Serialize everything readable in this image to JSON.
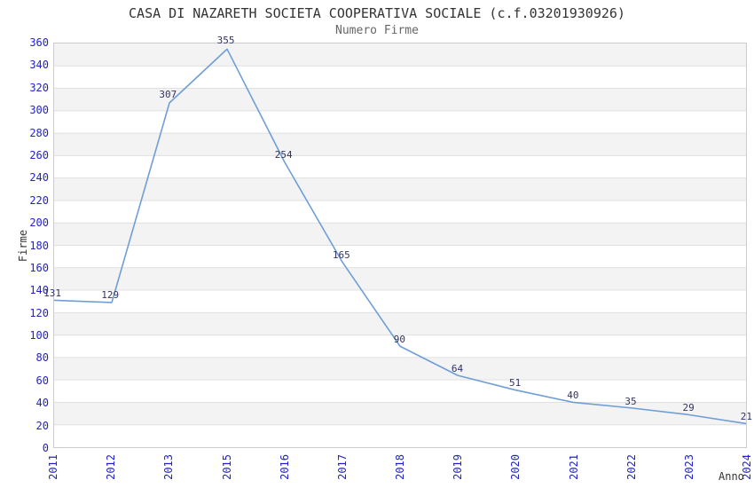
{
  "chart_data": {
    "type": "line",
    "title": "CASA DI NAZARETH SOCIETA COOPERATIVA SOCIALE (c.f.03201930926)",
    "subtitle": "Numero Firme",
    "xlabel": "Anno",
    "ylabel": "Firme",
    "categories": [
      "2011",
      "2012",
      "2013",
      "2015",
      "2016",
      "2017",
      "2018",
      "2019",
      "2020",
      "2021",
      "2022",
      "2023",
      "2024"
    ],
    "values": [
      131,
      129,
      307,
      355,
      254,
      165,
      90,
      64,
      51,
      40,
      35,
      29,
      21
    ],
    "point_labels": [
      "131",
      "129",
      "307",
      "355",
      "254",
      "165",
      "90",
      "64",
      "51",
      "40",
      "35",
      "29",
      "21"
    ],
    "yticks": [
      0,
      20,
      40,
      60,
      80,
      100,
      120,
      140,
      160,
      180,
      200,
      220,
      240,
      260,
      280,
      300,
      320,
      340,
      360
    ],
    "ylim": [
      0,
      360
    ],
    "ytick_step": 20,
    "grid": "horizontal",
    "band_fill": "alternating-horizontal",
    "legend": "none",
    "markers": "none",
    "colors": {
      "line": "#6f9ed6",
      "tick_label": "#2222cc",
      "point_label": "#333366",
      "title": "#333333",
      "subtitle": "#666666",
      "axis_label": "#333333",
      "band": "#f3f3f3",
      "gridline": "#e0e0e0",
      "plot_border": "#cccccc",
      "background": "#ffffff"
    }
  }
}
